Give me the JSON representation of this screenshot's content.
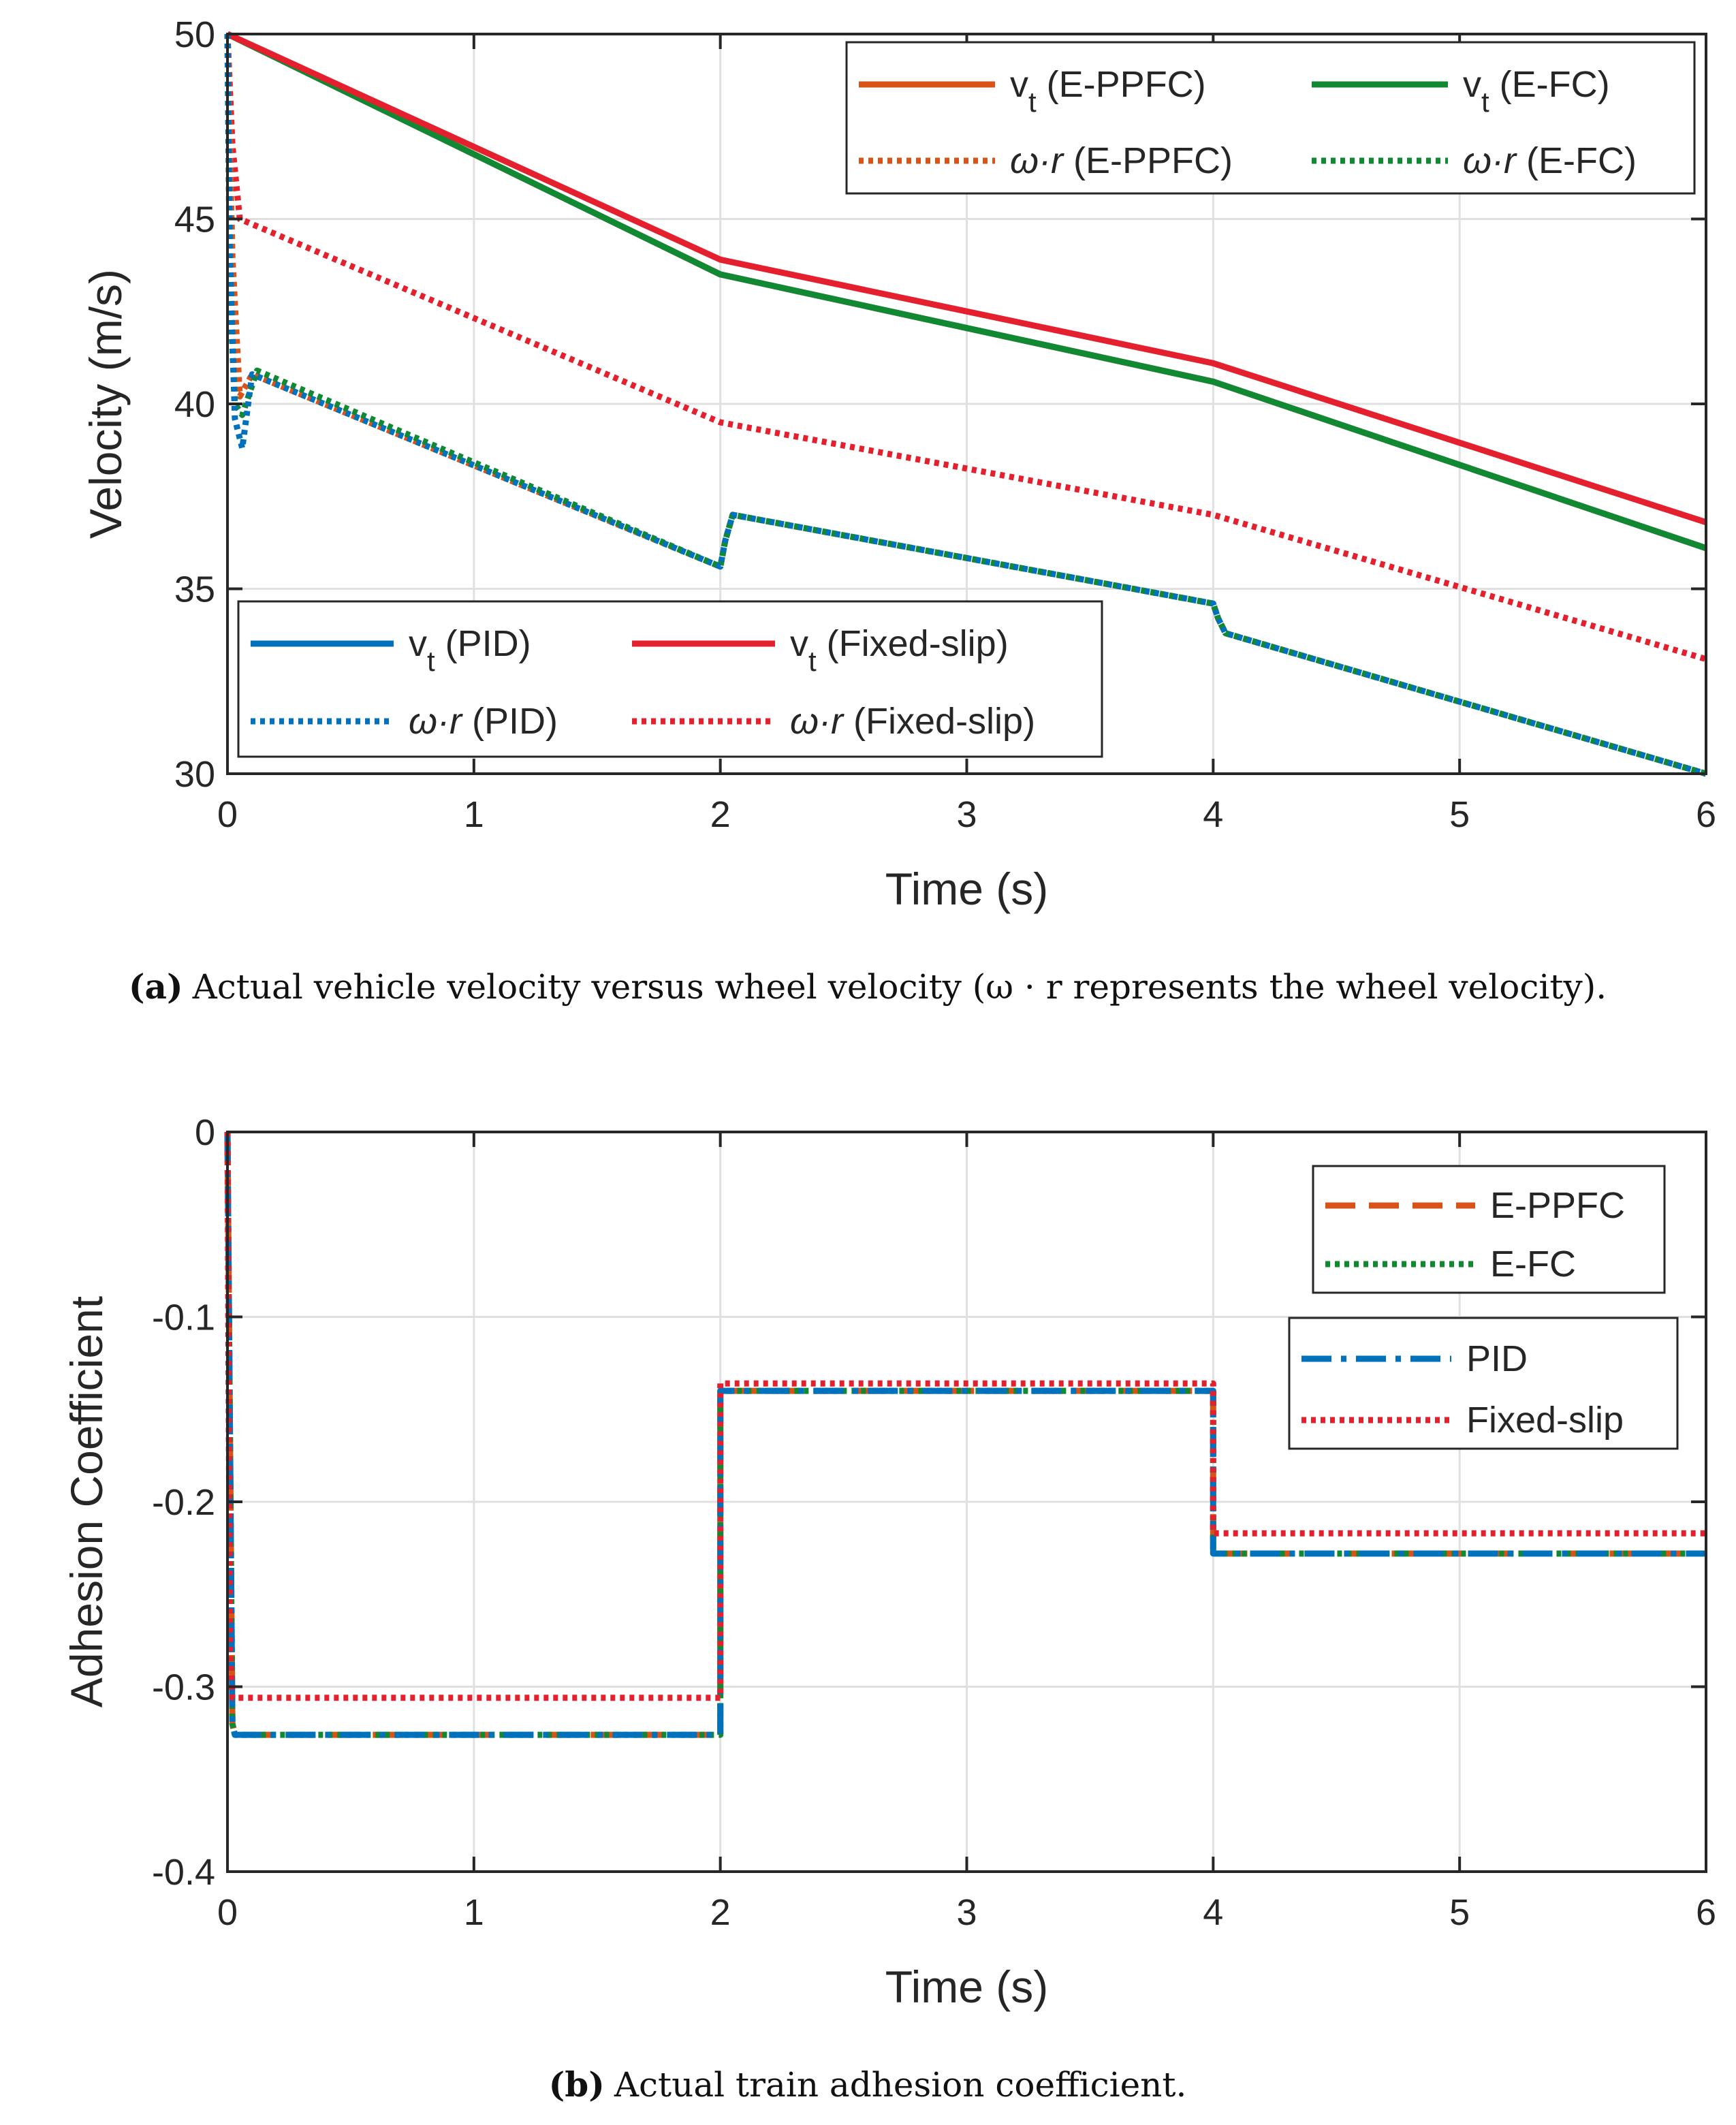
{
  "colors": {
    "pid": "#0072BD",
    "fixed_slip": "#E5202E",
    "eppfc": "#D95319",
    "efc": "#118832",
    "axis": "#262626",
    "grid": "#e0e0e0"
  },
  "chart_data": [
    {
      "type": "line",
      "title": "",
      "xlabel": "Time (s)",
      "ylabel": "Velocity (m/s)",
      "xlim": [
        0,
        6
      ],
      "ylim": [
        30,
        50
      ],
      "xticks": [
        "0",
        "1",
        "2",
        "3",
        "4",
        "5",
        "6"
      ],
      "yticks": [
        "30",
        "35",
        "40",
        "45",
        "50"
      ],
      "grid": true,
      "caption": {
        "label": "(a)",
        "text": "Actual vehicle velocity versus wheel velocity (ω · r represents the wheel velocity)."
      },
      "legends": [
        {
          "placement": "top-right",
          "entries": [
            {
              "text": "v",
              "sub": "t",
              "tail": " (E-PPFC)",
              "color": "#D95319",
              "style": "solid"
            },
            {
              "text": "v",
              "sub": "t",
              "tail": " (E-FC)",
              "color": "#118832",
              "style": "solid"
            },
            {
              "text": "ω·r",
              "sub": "",
              "tail": " (E-PPFC)",
              "color": "#D95319",
              "style": "dotted"
            },
            {
              "text": "ω·r",
              "sub": "",
              "tail": " (E-FC)",
              "color": "#118832",
              "style": "dotted"
            }
          ]
        },
        {
          "placement": "bottom-left",
          "entries": [
            {
              "text": "v",
              "sub": "t",
              "tail": " (PID)",
              "color": "#0072BD",
              "style": "solid"
            },
            {
              "text": "v",
              "sub": "t",
              "tail": " (Fixed-slip)",
              "color": "#E5202E",
              "style": "solid"
            },
            {
              "text": "ω·r",
              "sub": "",
              "tail": " (PID)",
              "color": "#0072BD",
              "style": "dotted"
            },
            {
              "text": "ω·r",
              "sub": "",
              "tail": " (Fixed-slip)",
              "color": "#E5202E",
              "style": "dotted"
            }
          ]
        }
      ],
      "series": [
        {
          "style": "solid",
          "color": "#0072BD",
          "x": [
            0,
            2,
            4,
            6
          ],
          "y": [
            50,
            43.5,
            40.6,
            36.1
          ]
        },
        {
          "style": "solid",
          "color": "#D95319",
          "x": [
            0,
            2,
            4,
            6
          ],
          "y": [
            50,
            43.5,
            40.6,
            36.1
          ]
        },
        {
          "style": "solid",
          "color": "#118832",
          "x": [
            0,
            2,
            4,
            6
          ],
          "y": [
            50,
            43.5,
            40.6,
            36.1
          ]
        },
        {
          "style": "solid",
          "color": "#E5202E",
          "x": [
            0,
            2,
            4,
            6
          ],
          "y": [
            50,
            43.9,
            41.1,
            36.8
          ]
        },
        {
          "style": "dotted",
          "color": "#E5202E",
          "x": [
            0,
            0.02,
            0.05,
            2,
            4,
            6
          ],
          "y": [
            50,
            47,
            45,
            39.5,
            37,
            33.1
          ]
        },
        {
          "style": "dotted",
          "color": "#D95319",
          "x": [
            0,
            0.02,
            0.05,
            0.1,
            2,
            2.02,
            2.05,
            4,
            4.02,
            4.05,
            6
          ],
          "y": [
            50,
            44,
            40.2,
            40.8,
            35.6,
            36.3,
            37.0,
            34.6,
            34.2,
            33.8,
            30
          ]
        },
        {
          "style": "dotted",
          "color": "#118832",
          "x": [
            0,
            0.01,
            0.03,
            0.06,
            0.12,
            2,
            2.02,
            2.05,
            4,
            4.02,
            4.05,
            6
          ],
          "y": [
            50,
            43,
            40.0,
            39.7,
            40.9,
            35.6,
            36.3,
            37.0,
            34.6,
            34.2,
            33.8,
            30
          ]
        },
        {
          "style": "dotted",
          "color": "#0072BD",
          "x": [
            0,
            0.01,
            0.03,
            0.06,
            0.1,
            2,
            2.02,
            2.05,
            4,
            4.02,
            4.05,
            6
          ],
          "y": [
            50,
            44,
            39.6,
            38.8,
            40.8,
            35.6,
            36.3,
            37.0,
            34.6,
            34.2,
            33.8,
            30
          ]
        }
      ]
    },
    {
      "type": "line",
      "title": "",
      "xlabel": "Time (s)",
      "ylabel": "Adhesion Coefficient",
      "xlim": [
        0,
        6
      ],
      "ylim": [
        -0.4,
        0
      ],
      "xticks": [
        "0",
        "1",
        "2",
        "3",
        "4",
        "5",
        "6"
      ],
      "yticks": [
        "-0.4",
        "-0.3",
        "-0.2",
        "-0.1",
        "0"
      ],
      "grid": true,
      "caption": {
        "label": "(b)",
        "text": "Actual train adhesion coefficient."
      },
      "legends": [
        {
          "placement": "top-right",
          "entries": [
            {
              "text": "E-PPFC",
              "color": "#D95319",
              "style": "dashed"
            },
            {
              "text": "E-FC",
              "color": "#118832",
              "style": "dotted"
            }
          ]
        },
        {
          "placement": "right",
          "entries": [
            {
              "text": "PID",
              "color": "#0072BD",
              "style": "dashdot"
            },
            {
              "text": "Fixed-slip",
              "color": "#E5202E",
              "style": "dotted"
            }
          ]
        }
      ],
      "series": [
        {
          "style": "dashed",
          "color": "#D95319",
          "x": [
            0,
            0.02,
            0.03,
            2,
            2,
            4,
            4,
            6
          ],
          "y": [
            0,
            -0.32,
            -0.326,
            -0.326,
            -0.14,
            -0.14,
            -0.228,
            -0.228
          ]
        },
        {
          "style": "dotted",
          "color": "#118832",
          "x": [
            0,
            0.02,
            0.03,
            2,
            2,
            4,
            4,
            6
          ],
          "y": [
            0,
            -0.32,
            -0.326,
            -0.326,
            -0.14,
            -0.14,
            -0.228,
            -0.228
          ]
        },
        {
          "style": "dashdot",
          "color": "#0072BD",
          "x": [
            0,
            0.02,
            0.03,
            2,
            2,
            4,
            4,
            6
          ],
          "y": [
            0,
            -0.32,
            -0.326,
            -0.326,
            -0.14,
            -0.14,
            -0.228,
            -0.228
          ]
        },
        {
          "style": "dotted",
          "color": "#E5202E",
          "x": [
            0,
            0.01,
            0.02,
            2,
            2,
            4,
            4,
            6
          ],
          "y": [
            0,
            -0.28,
            -0.306,
            -0.306,
            -0.136,
            -0.136,
            -0.217,
            -0.217
          ]
        }
      ]
    }
  ]
}
